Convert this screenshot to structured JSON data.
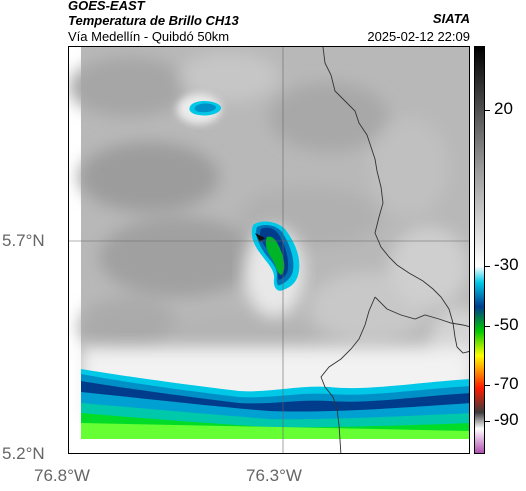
{
  "header": {
    "satellite": "GOES-EAST",
    "product": "Temperatura de Brillo CH13",
    "agency": "SIATA",
    "route": "Vía Medellín - Quibdó 50km",
    "datetime": "2025-02-12 22:09"
  },
  "axes": {
    "lat_labels": [
      "5.7°N",
      "5.2°N"
    ],
    "lon_labels": [
      "76.8°W",
      "76.3°W"
    ]
  },
  "colorbar": {
    "labels": [
      "20",
      "-30",
      "-50",
      "-70",
      "-90"
    ],
    "values": [
      20,
      -30,
      -50,
      -70,
      -90
    ],
    "range": [
      -95,
      45
    ],
    "colors": [
      "#b050b0",
      "#ffffff",
      "#3c3c3c",
      "#ff1a00",
      "#ffff00",
      "#00c800",
      "#003c8c",
      "#00c8e6",
      "#ffffff",
      "#9a9a9a",
      "#000000"
    ]
  },
  "map": {
    "features": [
      "cloud-cell-north",
      "storm-cell-central",
      "cold-band-south",
      "country-border",
      "department-border",
      "graticule"
    ],
    "colors": {
      "background": "#b8b8b8",
      "cold_cloud_fill": "#ffffff",
      "border": "#333333"
    }
  }
}
